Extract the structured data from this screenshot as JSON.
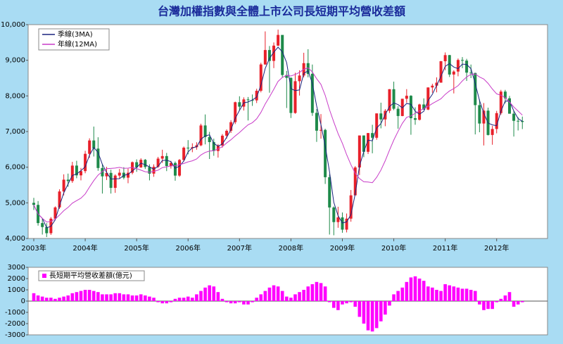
{
  "chart_data": [
    {
      "type": "candlestick",
      "title": "台灣加權指數與全體上市公司長短期平均營收差額",
      "categories": [
        "2003年",
        null,
        null,
        null,
        null,
        null,
        null,
        null,
        null,
        null,
        null,
        null,
        "2004年",
        null,
        null,
        null,
        null,
        null,
        null,
        null,
        null,
        null,
        null,
        null,
        "2005年",
        null,
        null,
        null,
        null,
        null,
        null,
        null,
        null,
        null,
        null,
        null,
        "2006年",
        null,
        null,
        null,
        null,
        null,
        null,
        null,
        null,
        null,
        null,
        null,
        "2007年",
        null,
        null,
        null,
        null,
        null,
        null,
        null,
        null,
        null,
        null,
        null,
        "2008年",
        null,
        null,
        null,
        null,
        null,
        null,
        null,
        null,
        null,
        null,
        null,
        "2009年",
        null,
        null,
        null,
        null,
        null,
        null,
        null,
        null,
        null,
        null,
        null,
        "2010年",
        null,
        null,
        null,
        null,
        null,
        null,
        null,
        null,
        null,
        null,
        null,
        "2011年",
        null,
        null,
        null,
        null,
        null,
        null,
        null,
        null,
        null,
        null,
        null,
        "2012年",
        null,
        null,
        null,
        null,
        null,
        null
      ],
      "open": [
        5000,
        4942,
        4432,
        4321,
        4148,
        4556,
        4872,
        5319,
        5650,
        5611,
        6045,
        5771,
        5890,
        6375,
        6750,
        6522,
        5977,
        5743,
        5840,
        5420,
        5765,
        5845,
        5706,
        5844,
        6140,
        5994,
        6207,
        6005,
        5819,
        6012,
        6241,
        6312,
        6033,
        6119,
        5764,
        6203,
        6548,
        6532,
        6561,
        6613,
        7171,
        6846,
        6704,
        6455,
        6611,
        6884,
        7021,
        7263,
        7823,
        7699,
        7902,
        7884,
        7875,
        8145,
        8883,
        9287,
        8982,
        9411,
        9711,
        8586,
        8506,
        7521,
        8413,
        8572,
        8919,
        8619,
        7524,
        7024,
        7046,
        5719,
        4870,
        4460,
        4591,
        4248,
        4557,
        5210,
        5992,
        6890,
        6432,
        6958,
        6826,
        7509,
        7340,
        7582,
        8188,
        7640,
        7436,
        7920,
        8004,
        7374,
        7330,
        7760,
        7616,
        8237,
        8287,
        8372,
        8973,
        9145,
        8600,
        8683,
        9008,
        8989,
        8653,
        8644,
        7741,
        7225,
        7587,
        6904,
        7072,
        7517,
        8121,
        7933,
        7501,
        7301,
        7296
      ],
      "high": [
        5140,
        5050,
        4560,
        4430,
        4600,
        4900,
        5380,
        5800,
        5820,
        6150,
        6180,
        5980,
        6460,
        6810,
        7140,
        6840,
        6090,
        6010,
        5930,
        5800,
        5950,
        6000,
        5960,
        6160,
        6220,
        6250,
        6230,
        6080,
        6080,
        6290,
        6490,
        6400,
        6180,
        6160,
        6230,
        6580,
        6760,
        6670,
        6700,
        7220,
        7480,
        6990,
        6800,
        6650,
        6930,
        7060,
        7320,
        7840,
        7990,
        7960,
        7970,
        8040,
        8200,
        8930,
        9810,
        9400,
        9500,
        9860,
        9700,
        8700,
        8520,
        8650,
        8720,
        9210,
        9310,
        8880,
        7630,
        7490,
        7080,
        5800,
        4900,
        4890,
        4730,
        4700,
        5360,
        6030,
        6890,
        6890,
        6960,
        7190,
        7510,
        7810,
        7630,
        8190,
        8400,
        7710,
        7920,
        8190,
        8020,
        7680,
        7780,
        7930,
        8240,
        8340,
        8520,
        8980,
        9220,
        9150,
        8720,
        9050,
        9090,
        9040,
        8880,
        8650,
        7900,
        7800,
        7670,
        7160,
        7580,
        8170,
        8170,
        8000,
        7580,
        7400,
        7420
      ],
      "low": [
        4800,
        4360,
        4110,
        4040,
        4100,
        4520,
        4830,
        5210,
        5450,
        5560,
        5690,
        5630,
        5830,
        6260,
        6300,
        5900,
        5260,
        5640,
        5260,
        5280,
        5680,
        5660,
        5550,
        5800,
        5870,
        5980,
        5950,
        5630,
        5730,
        5980,
        6120,
        5890,
        5960,
        5620,
        5730,
        6160,
        6360,
        6420,
        6490,
        6590,
        6640,
        6230,
        6320,
        6270,
        6550,
        6800,
        6960,
        7210,
        7590,
        7590,
        7310,
        7720,
        7800,
        8100,
        8870,
        8090,
        8780,
        9400,
        8520,
        7660,
        7380,
        7500,
        8010,
        8520,
        8520,
        7440,
        6710,
        6800,
        5530,
        4110,
        4090,
        4300,
        4160,
        4170,
        4470,
        5210,
        5780,
        6280,
        6370,
        6390,
        6770,
        7090,
        7150,
        7520,
        7600,
        7080,
        7430,
        7810,
        6910,
        7190,
        7310,
        7610,
        7600,
        8090,
        8100,
        8370,
        8720,
        8530,
        8070,
        8550,
        8780,
        8420,
        8500,
        6920,
        6980,
        6610,
        6890,
        6630,
        6950,
        7470,
        7790,
        7500,
        6860,
        7030,
        7070
      ],
      "close": [
        4942,
        4432,
        4321,
        4148,
        4556,
        4872,
        5319,
        5650,
        5611,
        6045,
        5771,
        5890,
        6375,
        6750,
        6522,
        5977,
        5743,
        5840,
        5420,
        5765,
        5845,
        5706,
        5844,
        6140,
        5994,
        6207,
        6005,
        5819,
        6012,
        6241,
        6312,
        6033,
        6119,
        5764,
        6203,
        6548,
        6532,
        6561,
        6613,
        7171,
        6846,
        6704,
        6455,
        6611,
        6884,
        7021,
        7263,
        7823,
        7699,
        7902,
        7884,
        7875,
        8145,
        8883,
        9287,
        8982,
        9411,
        9711,
        8586,
        8506,
        7521,
        8413,
        8572,
        8919,
        8619,
        7524,
        7024,
        7046,
        5719,
        4870,
        4460,
        4591,
        4248,
        4557,
        5210,
        5992,
        6890,
        6432,
        6958,
        6826,
        7509,
        7340,
        7582,
        8188,
        7640,
        7436,
        7920,
        8004,
        7374,
        7330,
        7760,
        7616,
        8237,
        8287,
        8372,
        8973,
        9145,
        8600,
        8683,
        9008,
        8989,
        8653,
        8644,
        7741,
        7225,
        7587,
        6904,
        7072,
        7517,
        8121,
        7933,
        7501,
        7301,
        7296,
        7270
      ],
      "up_color": "#e8202a",
      "down_color": "#1e8a4a",
      "series": [
        {
          "name": "季線(3MA)",
          "color": "#1a237e",
          "values": [
            4942,
            4687,
            4565,
            4300,
            4342,
            4525,
            4916,
            5280,
            5527,
            5769,
            5809,
            5902,
            6012,
            6338,
            6549,
            6416,
            6081,
            5853,
            5668,
            5675,
            5677,
            5772,
            5798,
            5897,
            5993,
            6114,
            6069,
            6010,
            5945,
            6024,
            6188,
            6195,
            6155,
            5972,
            6029,
            6172,
            6428,
            6547,
            6569,
            6782,
            6877,
            6907,
            6668,
            6590,
            6650,
            6839,
            7056,
            7369,
            7595,
            7808,
            7828,
            7887,
            7968,
            8301,
            8772,
            9051,
            9227,
            9368,
            9236,
            8934,
            8204,
            8147,
            8169,
            8635,
            8703,
            8354,
            7722,
            7198,
            6596,
            5878,
            5016,
            4640,
            4433,
            4465,
            4672,
            5253,
            6031,
            6438,
            6760,
            6739,
            7098,
            7225,
            7477,
            7703,
            7803,
            7755,
            7665,
            7787,
            7766,
            7569,
            7488,
            7569,
            7871,
            8047,
            8299,
            8544,
            8830,
            8906,
            8809,
            8764,
            8893,
            8883,
            8762,
            8346,
            7870,
            7518,
            7239,
            7188,
            7164,
            7570,
            7857,
            7852,
            7578,
            7366,
            7289
          ]
        },
        {
          "name": "年線(12MA)",
          "color": "#c83cc8",
          "values": [
            4942,
            4687,
            4565,
            4461,
            4480,
            4545,
            4656,
            4780,
            4872,
            4990,
            5061,
            5130,
            5249,
            5442,
            5625,
            5777,
            5876,
            5957,
            5965,
            5975,
            5995,
            5967,
            5973,
            5994,
            5962,
            5917,
            5874,
            5861,
            5883,
            5916,
            5990,
            6012,
            6035,
            6040,
            6070,
            6104,
            6149,
            6179,
            6230,
            6343,
            6413,
            6452,
            6464,
            6512,
            6576,
            6681,
            6769,
            6875,
            6972,
            7084,
            7190,
            7249,
            7357,
            7539,
            7775,
            7973,
            8184,
            8408,
            8518,
            8575,
            8560,
            8603,
            8660,
            8747,
            8787,
            8674,
            8485,
            8324,
            8016,
            7613,
            7269,
            6943,
            6670,
            6349,
            6069,
            5825,
            5681,
            5590,
            5584,
            5566,
            5715,
            5921,
            6181,
            6481,
            6764,
            7004,
            7230,
            7398,
            7438,
            7513,
            7580,
            7646,
            7707,
            7786,
            7852,
            7917,
            8042,
            8139,
            8203,
            8287,
            8422,
            8532,
            8606,
            8616,
            8532,
            8474,
            8352,
            8194,
            8058,
            8018,
            7955,
            7829,
            7688,
            7575,
            7460
          ]
        }
      ],
      "ylim": [
        4000,
        10000
      ],
      "yticks": [
        {
          "value": 4000,
          "label": "4,000"
        },
        {
          "value": 5000,
          "label": "5,000"
        },
        {
          "value": 6000,
          "label": "6,000"
        },
        {
          "value": 7000,
          "label": "7,000"
        },
        {
          "value": 8000,
          "label": "8,000"
        },
        {
          "value": 9000,
          "label": "9,000"
        },
        {
          "value": 10000,
          "label": "10,000"
        }
      ],
      "legend": "upper-left"
    },
    {
      "type": "bar",
      "series": [
        {
          "name": "長短期平均營收差額(億元)",
          "color": "#ff00ff",
          "values": [
            700,
            500,
            400,
            300,
            300,
            200,
            300,
            400,
            500,
            700,
            800,
            900,
            1000,
            1000,
            900,
            800,
            600,
            600,
            600,
            700,
            700,
            600,
            600,
            500,
            500,
            600,
            500,
            400,
            300,
            -100,
            -200,
            -200,
            -100,
            200,
            300,
            300,
            400,
            300,
            600,
            900,
            1200,
            1400,
            1300,
            800,
            200,
            -100,
            -200,
            -200,
            -100,
            -300,
            -300,
            -100,
            300,
            600,
            900,
            1200,
            1400,
            1300,
            900,
            400,
            300,
            600,
            800,
            1000,
            1300,
            1500,
            1700,
            1600,
            1300,
            -100,
            -600,
            -800,
            -300,
            -200,
            -100,
            -500,
            -1400,
            -2000,
            -2600,
            -2700,
            -2400,
            -1800,
            -1200,
            -400,
            600,
            900,
            1200,
            1700,
            2100,
            2200,
            2000,
            1800,
            1300,
            1200,
            1000,
            900,
            1500,
            1400,
            1300,
            1200,
            1100,
            1100,
            1000,
            900,
            -300,
            -800,
            -700,
            -700,
            -100,
            200,
            500,
            800,
            -500,
            -300,
            -100
          ]
        }
      ],
      "ylim": [
        -3000,
        3000
      ],
      "yticks": [
        -3000,
        -2000,
        -1000,
        0,
        1000,
        2000,
        3000
      ],
      "tick_color": "#e00000",
      "legend": "upper-left"
    }
  ]
}
